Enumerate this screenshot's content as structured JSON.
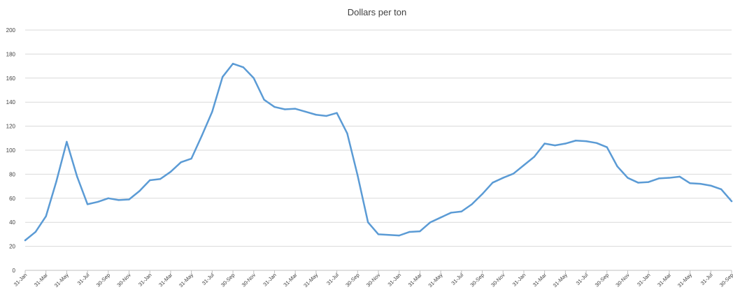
{
  "chart_data": {
    "type": "line",
    "title": "Dollars per ton",
    "xlabel": "",
    "ylabel": "",
    "ylim": [
      0,
      200
    ],
    "yticks": [
      0,
      20,
      40,
      60,
      80,
      100,
      120,
      140,
      160,
      180,
      200
    ],
    "grid": true,
    "legend": "none",
    "line_color": "#5b9bd5",
    "x_tick_labels": [
      "31-Jan",
      "31-Mar",
      "31-May",
      "31-Jul",
      "30-Sep",
      "30-Nov",
      "31-Jan",
      "31-Mar",
      "31-May",
      "31-Jul",
      "30-Sep",
      "30-Nov",
      "31-Jan",
      "31-Mar",
      "31-May",
      "31-Jul",
      "30-Sep",
      "30-Nov",
      "31-Jan",
      "31-Mar",
      "31-May",
      "31-Jul",
      "30-Sep",
      "30-Nov",
      "31-Jan",
      "31-Mar",
      "31-May",
      "31-Jul",
      "30-Sep",
      "30-Nov",
      "31-Jan",
      "31-Mar",
      "31-May",
      "31-Jul",
      "30-Sep"
    ],
    "series": [
      {
        "values": [
          25,
          32,
          45,
          74,
          107,
          78,
          55,
          57,
          60,
          58.5,
          59,
          66,
          75,
          76,
          82,
          90,
          93,
          112,
          132,
          161,
          172,
          169,
          160,
          142,
          136,
          134,
          134.5,
          132,
          129.5,
          128.5,
          131,
          114,
          79,
          40,
          30,
          29.5,
          29,
          32,
          32.5,
          40,
          44,
          48,
          49,
          55,
          63.5,
          73,
          77,
          80.5,
          87.5,
          94.5,
          105.5,
          104,
          105.5,
          108,
          107.5,
          106,
          102.5,
          86.5,
          77,
          73,
          73.5,
          76.5,
          77,
          78,
          72.5,
          72,
          70.5,
          67.5,
          57.5
        ]
      }
    ]
  }
}
